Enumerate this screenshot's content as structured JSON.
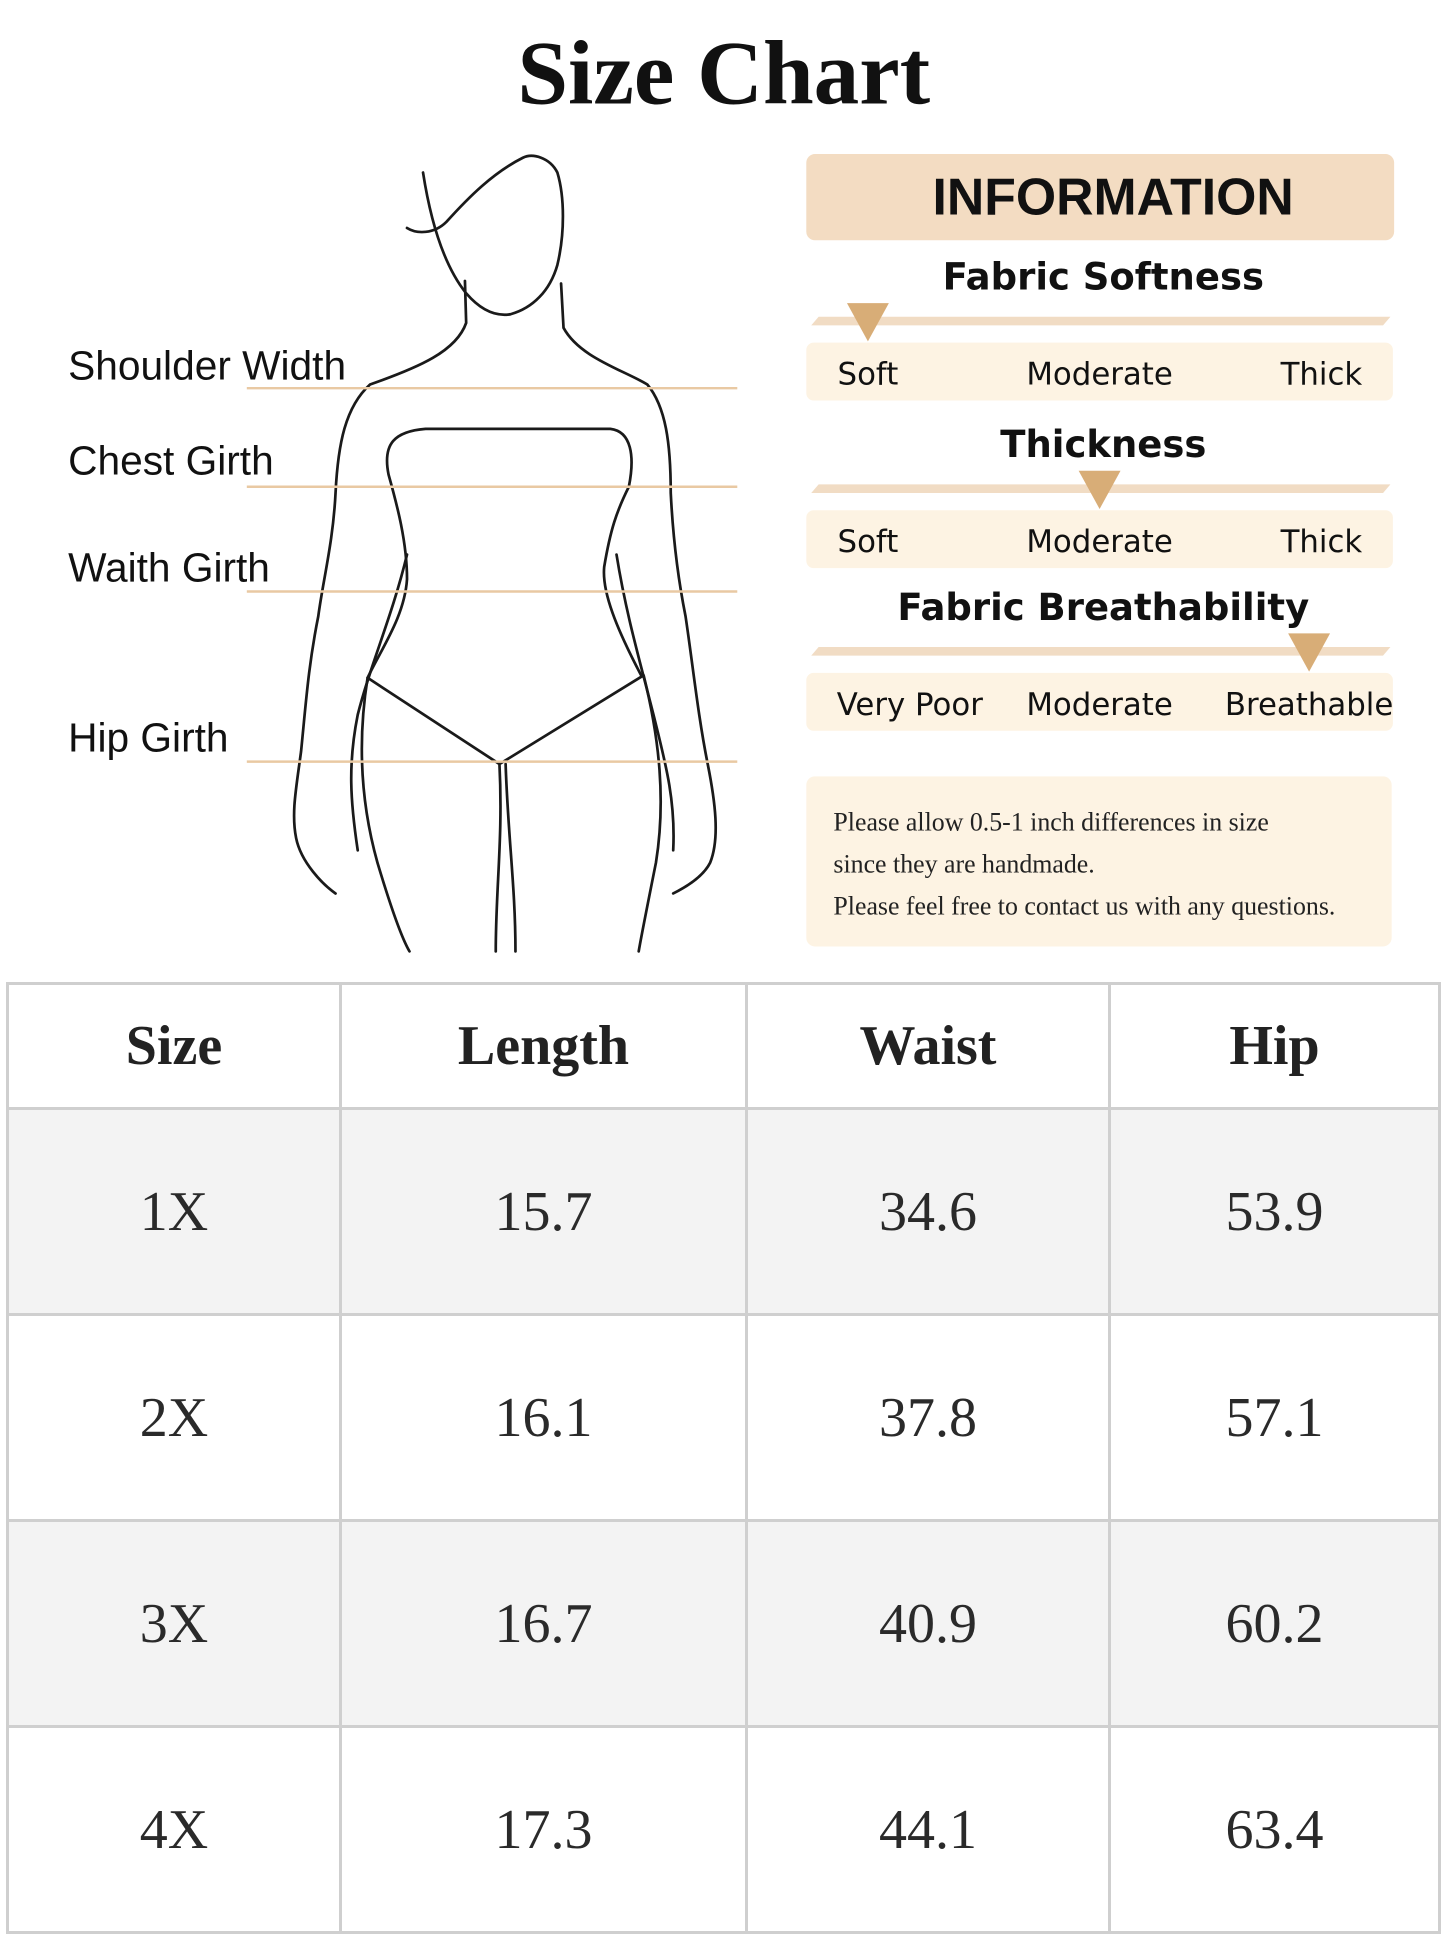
{
  "title": "Size Chart",
  "figure": {
    "labels": [
      "Shoulder Width",
      "Chest Girth",
      "Waith Girth",
      "Hip Girth"
    ],
    "line_color": "#e9c9a3"
  },
  "information": {
    "header": "INFORMATION",
    "scales": [
      {
        "title": "Fabric Softness",
        "options": [
          "Soft",
          "Moderate",
          "Thick"
        ],
        "selected_index": 0,
        "selected": "Soft"
      },
      {
        "title": "Thickness",
        "options": [
          "Soft",
          "Moderate",
          "Thick"
        ],
        "selected_index": 1,
        "selected": "Moderate"
      },
      {
        "title": "Fabric Breathability",
        "options": [
          "Very Poor",
          "Moderate",
          "Breathable"
        ],
        "selected_index": 2,
        "selected": "Breathable"
      }
    ],
    "note": [
      "Please allow 0.5-1 inch differences in size",
      "since they are handmade.",
      "Please feel free to contact us with any questions."
    ],
    "colors": {
      "header_bg": "#f3dcc2",
      "box_bg": "#fdf3e3",
      "marker": "#d8ad77",
      "bar": "#f1dcc4"
    }
  },
  "table": {
    "headers": [
      "Size",
      "Length",
      "Waist",
      "Hip"
    ],
    "rows": [
      [
        "1X",
        "15.7",
        "34.6",
        "53.9"
      ],
      [
        "2X",
        "16.1",
        "37.8",
        "57.1"
      ],
      [
        "3X",
        "16.7",
        "40.9",
        "60.2"
      ],
      [
        "4X",
        "17.3",
        "44.1",
        "63.4"
      ]
    ]
  }
}
